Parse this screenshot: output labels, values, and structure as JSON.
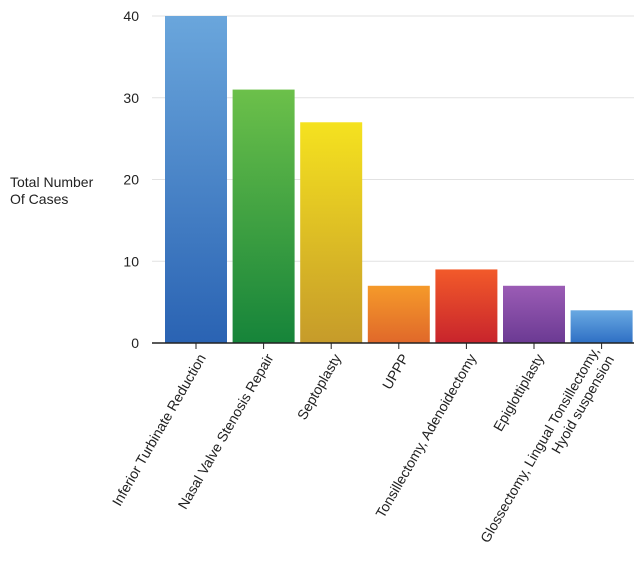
{
  "chart_data": {
    "type": "bar",
    "ylabel_lines": [
      "Total Number",
      "Of Cases"
    ],
    "xlabel": "",
    "ylim": [
      0,
      40
    ],
    "yticks": [
      0,
      10,
      20,
      30,
      40
    ],
    "grid": true,
    "categories": [
      [
        "Inferior Turbinate Reduction"
      ],
      [
        "Nasal Valve Stenosis Repair"
      ],
      [
        "Septoplasty"
      ],
      [
        "UPPP"
      ],
      [
        "Tonsillectomy, Adenoidectomy"
      ],
      [
        "Epiglottiplasty"
      ],
      [
        "Glossectomy, Lingual Tonsillectomy,",
        "Hyoid suspension"
      ]
    ],
    "values": [
      40,
      31,
      27,
      7,
      9,
      7,
      4
    ],
    "colors": [
      [
        "#6aa6dc",
        "#2a63b3"
      ],
      [
        "#6cc04a",
        "#16843a"
      ],
      [
        "#f5e21f",
        "#c69b2a"
      ],
      [
        "#f59a2a",
        "#e0682a"
      ],
      [
        "#f25a2a",
        "#c8242c"
      ],
      [
        "#9b5cb5",
        "#6b3a93"
      ],
      [
        "#69a9e2",
        "#2e6fc4"
      ]
    ]
  }
}
